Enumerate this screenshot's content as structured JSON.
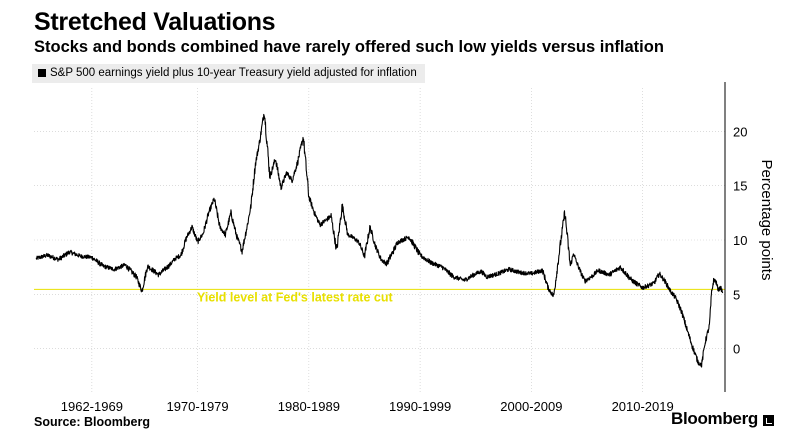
{
  "title": "Stretched Valuations",
  "subtitle": "Stocks and bonds combined have rarely offered such low yields versus inflation",
  "source": "Source: Bloomberg",
  "brand": "Bloomberg",
  "chart_data": {
    "type": "line",
    "ylabel": "Percentage points",
    "ylim": [
      -4,
      24
    ],
    "yticks": [
      0,
      5,
      10,
      15,
      20
    ],
    "xlim": [
      1960.3,
      2022.4
    ],
    "xtick_labels": [
      {
        "label": "1962-1969",
        "x": 1965.5
      },
      {
        "label": "1970-1979",
        "x": 1975
      },
      {
        "label": "1980-1989",
        "x": 1985
      },
      {
        "label": "1990-1999",
        "x": 1995
      },
      {
        "label": "2000-2009",
        "x": 2005
      },
      {
        "label": "2010-2019",
        "x": 2015
      }
    ],
    "grid": true,
    "legend_position": "top-left",
    "series": [
      {
        "name": "S&P 500 earnings yield plus 10-year Treasury yield adjusted for inflation",
        "color": "#000000",
        "x": [
          1960.5,
          1961.5,
          1962.5,
          1963.5,
          1964.5,
          1965.5,
          1966.5,
          1967.5,
          1968.5,
          1969.5,
          1970.0,
          1970.5,
          1971.5,
          1972.5,
          1973.0,
          1973.5,
          1974.0,
          1974.5,
          1975.0,
          1975.5,
          1976.0,
          1976.5,
          1977.0,
          1977.5,
          1978.0,
          1978.5,
          1979.0,
          1979.5,
          1979.8,
          1980.2,
          1980.6,
          1981.0,
          1981.5,
          1982.0,
          1982.5,
          1983.0,
          1983.5,
          1984.0,
          1984.5,
          1985.0,
          1985.5,
          1986.0,
          1987.0,
          1987.5,
          1988.0,
          1988.5,
          1989.0,
          1989.5,
          1990.0,
          1990.5,
          1991.0,
          1991.5,
          1992.0,
          1993.0,
          1994.0,
          1995.0,
          1996.0,
          1997.0,
          1998.0,
          1999.0,
          2000.0,
          2000.5,
          2001.0,
          2002.0,
          2003.0,
          2004.0,
          2005.0,
          2006.0,
          2006.5,
          2007.0,
          2007.5,
          2008.0,
          2008.5,
          2008.8,
          2009.0,
          2009.4,
          2009.8,
          2010.5,
          2011.0,
          2012.0,
          2013.0,
          2014.0,
          2015.0,
          2016.0,
          2016.5,
          2017.0,
          2017.5,
          2018.0,
          2018.5,
          2019.0,
          2019.5,
          2020.0,
          2020.3,
          2020.6,
          2021.0,
          2021.2,
          2021.4,
          2021.6,
          2021.8,
          2022.0,
          2022.2
        ],
        "y": [
          8.3,
          8.6,
          8.2,
          8.9,
          8.5,
          8.4,
          7.6,
          7.3,
          7.7,
          6.6,
          5.3,
          7.6,
          6.8,
          7.7,
          8.3,
          8.6,
          10.2,
          11.2,
          9.8,
          10.6,
          12.5,
          13.8,
          11.2,
          10.5,
          12.5,
          10.4,
          9.0,
          11.5,
          13.2,
          17.0,
          19.2,
          21.9,
          15.8,
          17.5,
          14.8,
          16.2,
          15.5,
          17.2,
          19.5,
          14.0,
          12.5,
          11.4,
          12.2,
          9.0,
          13.2,
          10.5,
          10.2,
          9.8,
          8.5,
          11.2,
          9.4,
          8.2,
          7.8,
          9.8,
          10.3,
          8.6,
          7.9,
          7.5,
          6.6,
          6.3,
          6.9,
          7.1,
          6.6,
          6.9,
          7.3,
          7.0,
          6.9,
          7.2,
          5.6,
          4.8,
          8.8,
          12.6,
          7.6,
          8.8,
          8.1,
          7.1,
          6.2,
          6.7,
          7.2,
          6.8,
          7.5,
          6.3,
          5.6,
          6.0,
          6.9,
          6.2,
          5.3,
          4.6,
          3.4,
          1.7,
          0.1,
          -1.3,
          -1.5,
          0.5,
          2.1,
          5.2,
          6.4,
          6.1,
          5.4,
          5.6,
          5.2
        ]
      }
    ],
    "annotations": [
      {
        "text": "Yield level at Fed's latest rate cut",
        "y": 5.45,
        "color": "#e8e000"
      }
    ]
  }
}
